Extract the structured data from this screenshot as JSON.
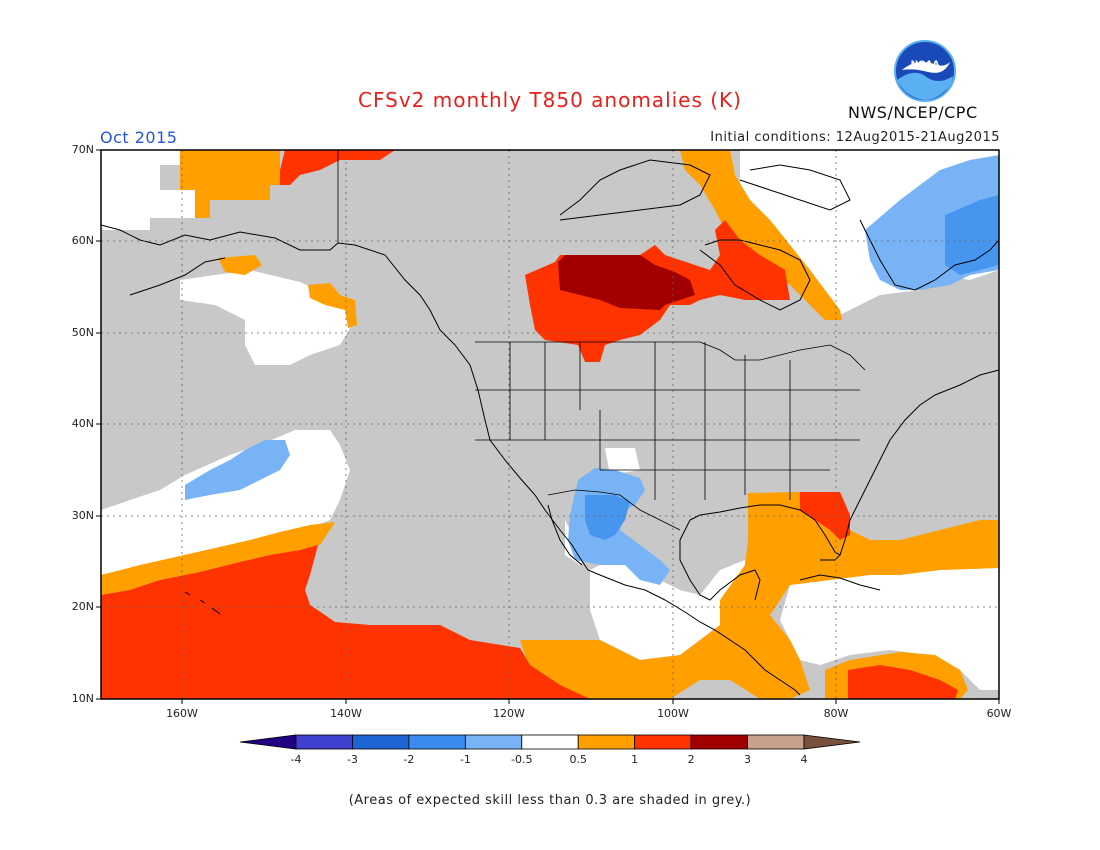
{
  "title": "CFSv2 monthly T850 anomalies (K)",
  "period": "Oct 2015",
  "initial_conditions": "Initial conditions: 12Aug2015-21Aug2015",
  "agency": "NWS/NCEP/CPC",
  "logo_text": "NOAA",
  "note": "(Areas of expected skill less than 0.3 are shaded in grey.)",
  "map": {
    "lon_range": [
      -170,
      -60
    ],
    "lat_range": [
      10,
      70
    ],
    "lat_labels": [
      "70N",
      "60N",
      "50N",
      "40N",
      "30N",
      "20N",
      "10N"
    ],
    "lon_labels": [
      "160W",
      "140W",
      "120W",
      "100W",
      "80W",
      "60W"
    ],
    "colors": {
      "grey": "#c8c8c8",
      "white": "#ffffff",
      "orange": "#ffa000",
      "red": "#ff3300",
      "darkred": "#a00000",
      "blue1": "#78b4f5",
      "blue2": "#4696f0"
    }
  },
  "colorbar": {
    "labels": [
      "-4",
      "-3",
      "-2",
      "-1",
      "-0.5",
      "0.5",
      "1",
      "2",
      "3",
      "4"
    ],
    "colors": [
      "#200080",
      "#4040d0",
      "#1e64d2",
      "#3c8cf0",
      "#78b4f5",
      "#ffffff",
      "#ffa000",
      "#ff3300",
      "#a00000",
      "#c8a08c",
      "#78503c"
    ]
  }
}
